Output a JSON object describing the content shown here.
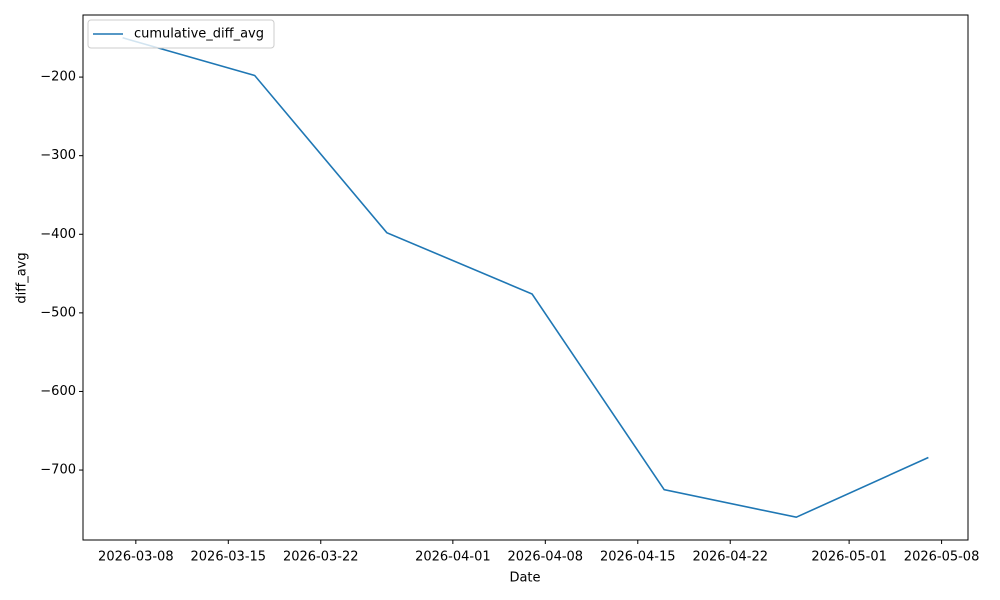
{
  "chart_data": {
    "type": "line",
    "x_label": "Date",
    "y_label": "diff_avg",
    "x": [
      "2026-03-07",
      "2026-03-17",
      "2026-03-27",
      "2026-04-07",
      "2026-04-17",
      "2026-04-27",
      "2026-05-07"
    ],
    "series": [
      {
        "name": "cumulative_diff_avg",
        "color": "#1f77b4",
        "values": [
          -150,
          -198,
          -398,
          -476,
          -725,
          -760,
          -684
        ]
      }
    ],
    "xlim": [
      "2026-03-04",
      "2026-05-10"
    ],
    "xticks": [
      "2026-03-08",
      "2026-03-15",
      "2026-03-22",
      "2026-04-01",
      "2026-04-08",
      "2026-04-15",
      "2026-04-22",
      "2026-05-01",
      "2026-05-08"
    ],
    "ylim": [
      -789,
      -121
    ],
    "yticks": [
      {
        "value": -200,
        "label": "−200"
      },
      {
        "value": -300,
        "label": "−300"
      },
      {
        "value": -400,
        "label": "−400"
      },
      {
        "value": -500,
        "label": "−500"
      },
      {
        "value": -600,
        "label": "−600"
      },
      {
        "value": -700,
        "label": "−700"
      }
    ],
    "legend": "upper left",
    "grid": false
  }
}
